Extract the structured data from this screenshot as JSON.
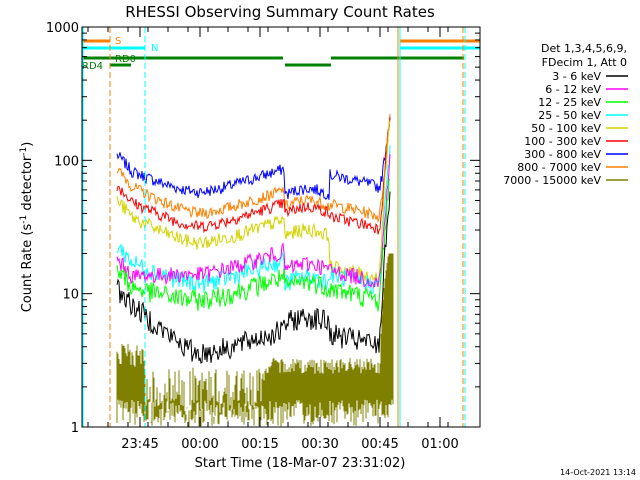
{
  "chart_data": {
    "type": "line",
    "title": "RHESSI Observing Summary Count Rates",
    "xlabel": "Start Time (18-Mar-07 23:31:02)",
    "ylabel_main": "Count Rate (s",
    "ylabel_sup1": "-1",
    "ylabel_mid": " detector",
    "ylabel_sup2": "-1",
    "ylabel_end": ")",
    "y_scale": "log",
    "ylim": [
      1,
      1000
    ],
    "y_ticks": [
      {
        "v": 1,
        "label": "1"
      },
      {
        "v": 10,
        "label": "10"
      },
      {
        "v": 100,
        "label": "100"
      },
      {
        "v": 1000,
        "label": "1000"
      }
    ],
    "x_range_min": [
      -4,
      73
    ],
    "x_ticks": [
      {
        "v": 14,
        "label": "23:45"
      },
      {
        "v": 29,
        "label": "00:00"
      },
      {
        "v": 44,
        "label": "00:15"
      },
      {
        "v": 59,
        "label": "00:30"
      },
      {
        "v": 74,
        "label": "00:45"
      },
      {
        "v": 89,
        "label": "01:00"
      }
    ],
    "timestamp": "14-Oct-2021 13:14",
    "legend_header": [
      "Det 1,3,4,5,6,9,",
      "FDecim 1, Att 0"
    ],
    "legend": [
      {
        "label": "3 - 6 keV",
        "color": "#000000"
      },
      {
        "label": "6 - 12 keV",
        "color": "#ff00ff"
      },
      {
        "label": "12 - 25 keV",
        "color": "#00ff00"
      },
      {
        "label": "25 - 50 keV",
        "color": "#00ffff"
      },
      {
        "label": "50 - 100 keV",
        "color": "#d4d400"
      },
      {
        "label": "100 - 300 keV",
        "color": "#ff0000"
      },
      {
        "label": "300 - 800 keV",
        "color": "#0000ff"
      },
      {
        "label": "800 - 7000 keV",
        "color": "#ff8000"
      },
      {
        "label": "7000 - 15000 keV",
        "color": "#808000"
      }
    ],
    "flags": [
      {
        "label": "S",
        "color": "#ff8000"
      },
      {
        "label": "N",
        "color": "#00ffff"
      },
      {
        "label": "RD0",
        "color": "#008000"
      },
      {
        "label": "RD4",
        "color": "#008000"
      }
    ]
  }
}
